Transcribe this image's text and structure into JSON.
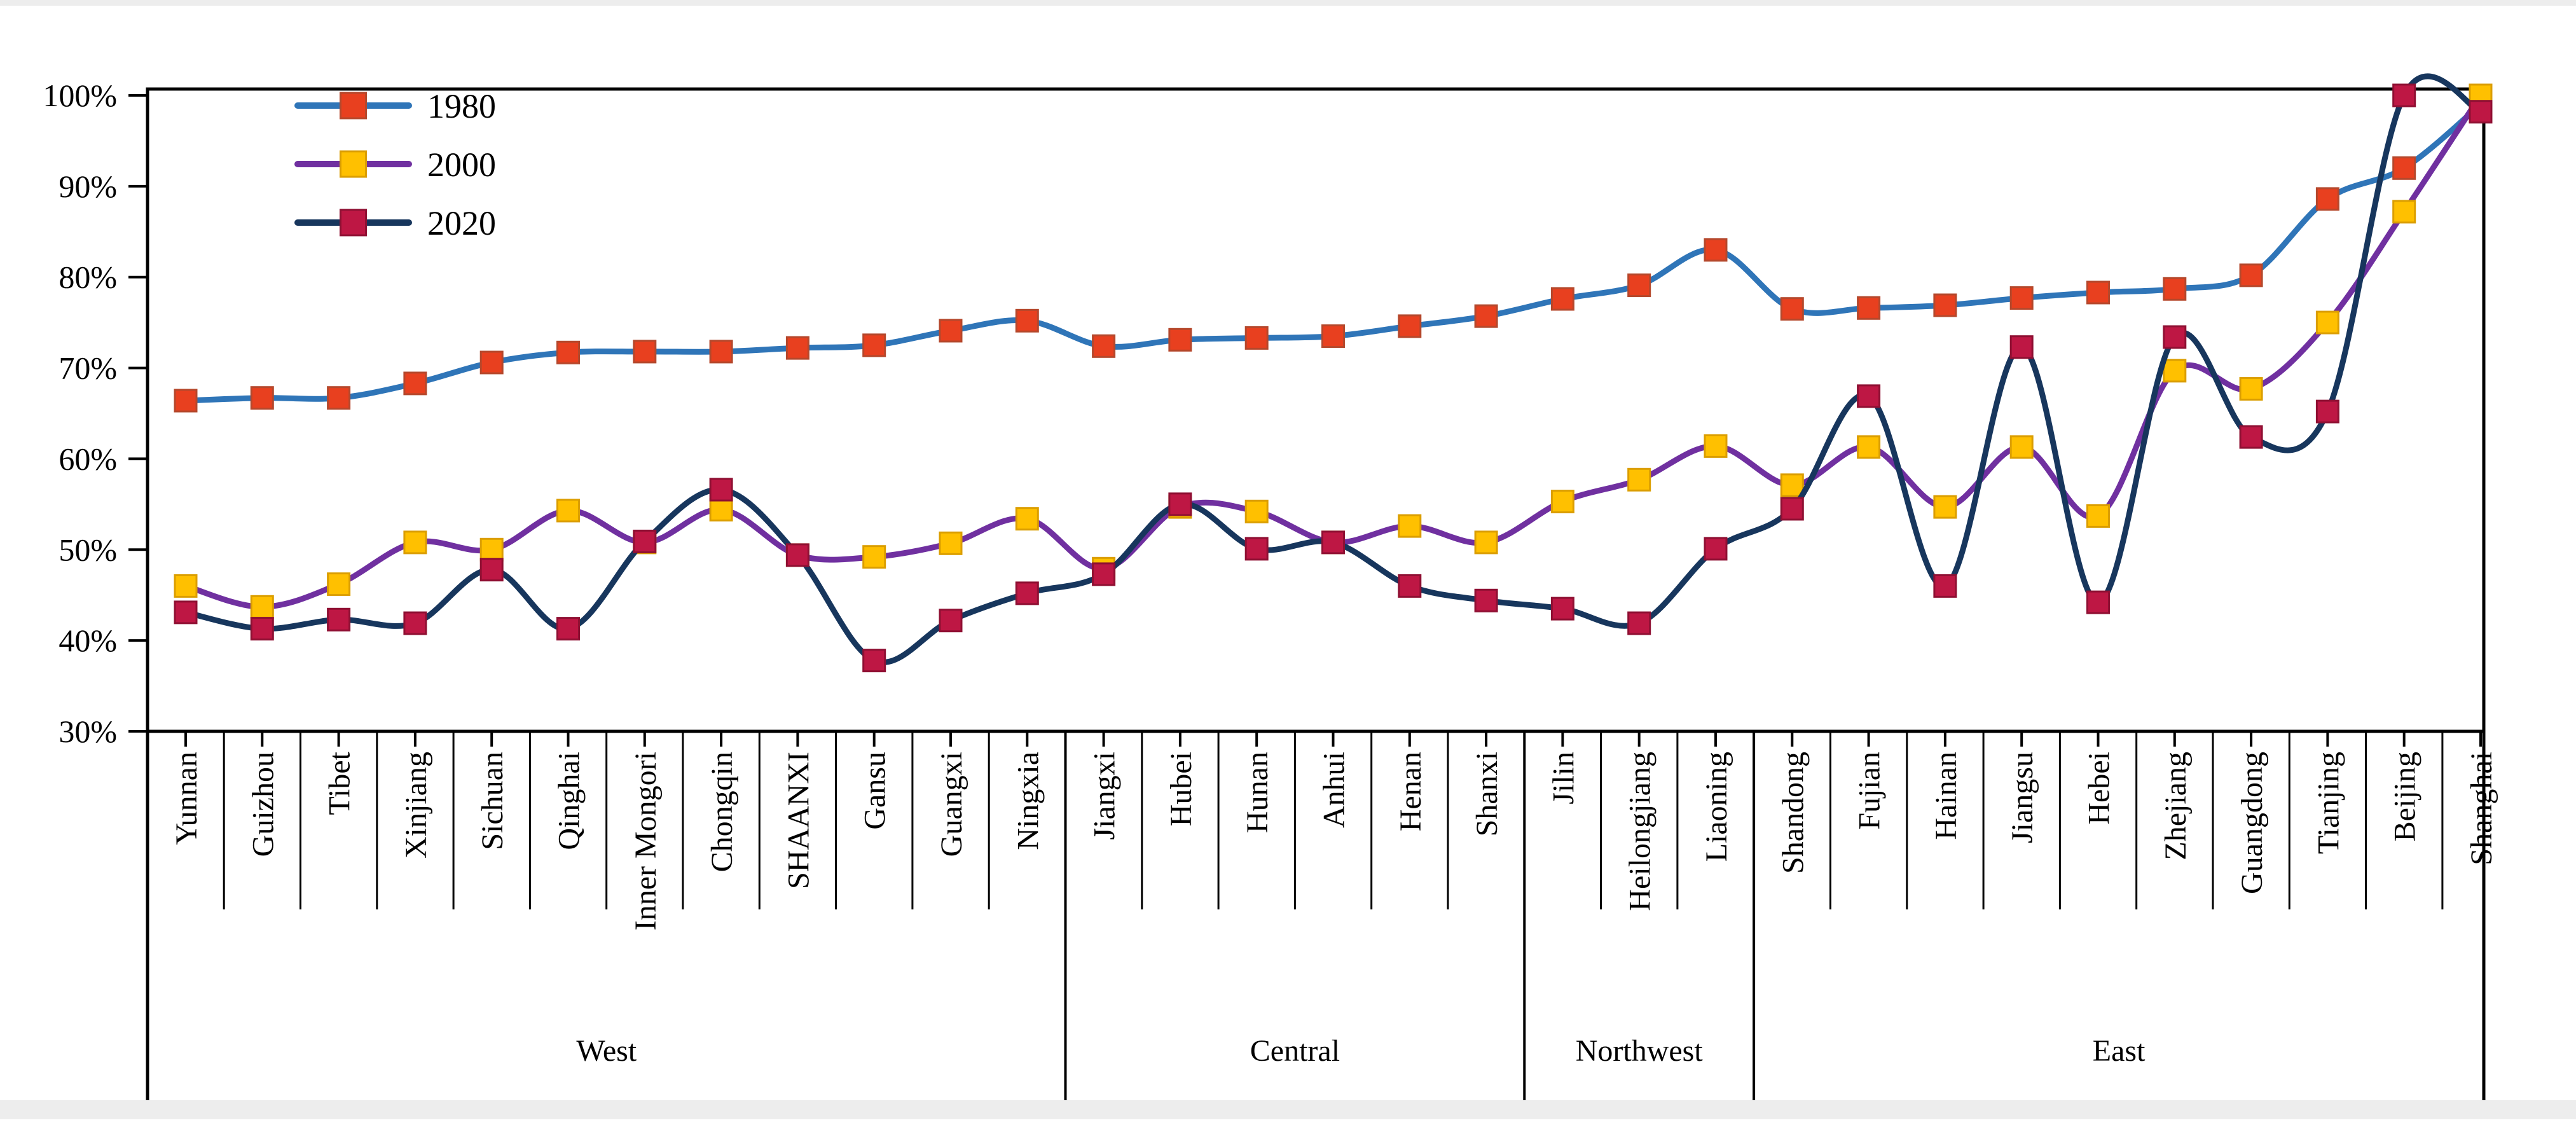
{
  "chart_data": {
    "type": "line",
    "title": "",
    "xlabel": "",
    "ylabel": "",
    "ylim": [
      30,
      100
    ],
    "grid": false,
    "legend_position": "top-left",
    "y_tick_labels": [
      "100%",
      "90%",
      "80%",
      "70%",
      "60%",
      "50%",
      "40%",
      "30%"
    ],
    "y_tick_values": [
      100,
      90,
      80,
      70,
      60,
      50,
      40,
      30
    ],
    "categories": [
      "Yunnan",
      "Guizhou",
      "Tibet",
      "Xinjiang",
      "Sichuan",
      "Qinghai",
      "Inner Mongori",
      "Chongqin",
      "SHAANXI",
      "Gansu",
      "Guangxi",
      "Ningxia",
      "Jiangxi",
      "Hubei",
      "Hunan",
      "Anhui",
      "Henan",
      "Shanxi",
      "Jilin",
      "Heilongjiang",
      "Liaoning",
      "Shandong",
      "Fujian",
      "Hainan",
      "Jiangsu",
      "Hebei",
      "Zhejiang",
      "Guangdong",
      "Tianjing",
      "Beijing",
      "Shanghai"
    ],
    "region_groups": [
      {
        "label": "West",
        "count": 12
      },
      {
        "label": "Central",
        "count": 6
      },
      {
        "label": "Northwest",
        "count": 3
      },
      {
        "label": "East",
        "count": 10
      }
    ],
    "series": [
      {
        "name": "1980",
        "line_color": "#2F75B8",
        "marker_color": "#E8401F",
        "marker_border": "#B5482C",
        "values": [
          66.4,
          66.7,
          66.7,
          68.3,
          70.6,
          71.7,
          71.8,
          71.8,
          72.2,
          72.5,
          74.1,
          75.2,
          72.4,
          73.1,
          73.3,
          73.5,
          74.6,
          75.7,
          77.6,
          79.1,
          83,
          76.5,
          76.6,
          76.9,
          77.7,
          78.3,
          78.7,
          80.2,
          88.6,
          92,
          99
        ]
      },
      {
        "name": "2000",
        "line_color": "#7030A0",
        "marker_color": "#FFC000",
        "marker_border": "#DB9E00",
        "values": [
          46,
          43.7,
          46.2,
          50.8,
          50,
          54.3,
          50.8,
          54.4,
          49.4,
          49.2,
          50.7,
          53.4,
          47.9,
          54.7,
          54.2,
          50.8,
          52.6,
          50.8,
          55.3,
          57.7,
          61.4,
          57.1,
          61.3,
          54.7,
          61.3,
          53.7,
          69.7,
          67.7,
          75,
          87.2,
          100
        ]
      },
      {
        "name": "2020",
        "line_color": "#17365D",
        "marker_color": "#BE1744",
        "marker_border": "#8F1033",
        "values": [
          43.1,
          41.3,
          42.3,
          41.9,
          47.8,
          41.3,
          50.9,
          56.6,
          49.4,
          37.8,
          42.2,
          45.2,
          47.3,
          55,
          50.1,
          50.8,
          46,
          44.4,
          43.5,
          41.9,
          50.1,
          54.5,
          66.9,
          46,
          72.3,
          44.2,
          73.4,
          62.4,
          65.2,
          100,
          98.2
        ]
      }
    ],
    "colors": {
      "axis": "#000000",
      "background": "#ffffff",
      "page_strip": "#ededed"
    }
  }
}
